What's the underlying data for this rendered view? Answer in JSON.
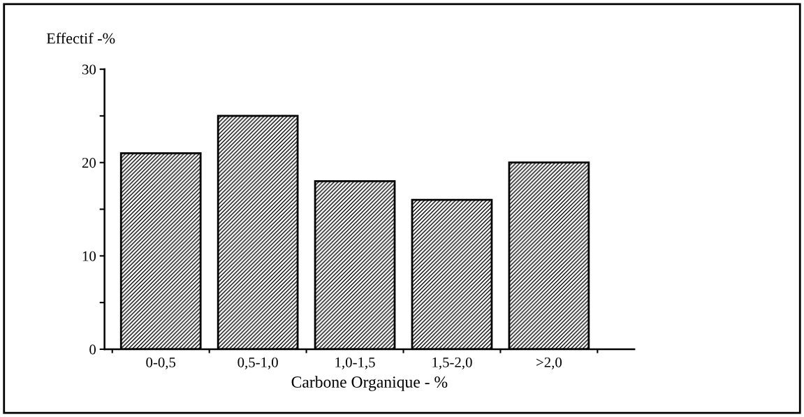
{
  "chart_data": {
    "type": "bar",
    "ylabel": "Effectif -%",
    "xlabel": "Carbone Organique - %",
    "categories": [
      "0-0,5",
      "0,5-1,0",
      "1,0-1,5",
      "1,5-2,0",
      ">2,0"
    ],
    "values": [
      21,
      25,
      18,
      16,
      20
    ],
    "color": "#000000",
    "ylim": [
      0,
      30
    ],
    "yticks": [
      0,
      {
        "value": 5,
        "label": null
      },
      10,
      {
        "value": 15,
        "label": null
      },
      20,
      {
        "value": 25,
        "label": null
      },
      30
    ],
    "grid": false,
    "legend": false
  }
}
